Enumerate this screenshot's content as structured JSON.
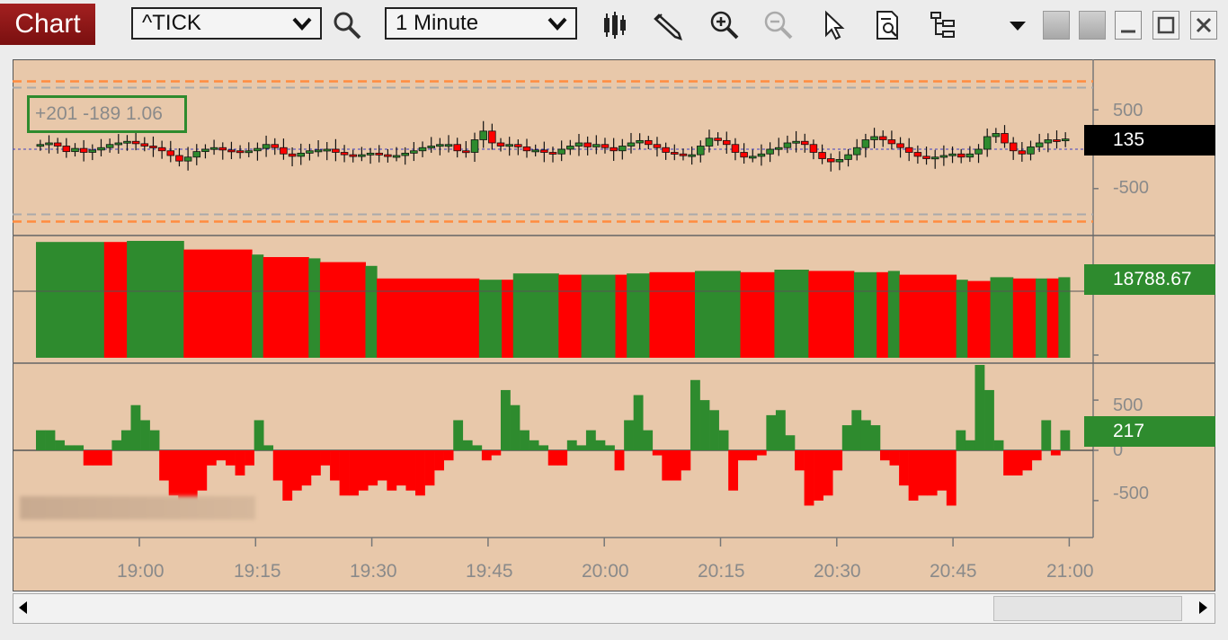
{
  "toolbar": {
    "tab_label": "Chart",
    "symbol_value": "^TICK",
    "interval_value": "1 Minute",
    "icons": [
      "search-icon",
      "bar-chart-icon",
      "pencil-icon",
      "zoom-in-icon",
      "zoom-out-icon",
      "pointer-icon",
      "page-search-icon",
      "layout-icon",
      "dropdown-arrow-icon",
      "minimize-icon",
      "restore-icon",
      "close-icon"
    ]
  },
  "legend": {
    "text": "+201 -189 1.06"
  },
  "panel1": {
    "y_ticks": [
      "500",
      "0",
      "-500"
    ],
    "price_tag": "135",
    "price_tag_color": "#000000"
  },
  "panel2": {
    "price_tag": "18788.67",
    "price_tag_color": "#2e8b2e"
  },
  "panel3": {
    "y_ticks": [
      "500",
      "0",
      "-500"
    ],
    "price_tag": "217",
    "price_tag_color": "#2e8b2e"
  },
  "x_axis": {
    "labels": [
      "19:00",
      "19:15",
      "19:30",
      "19:45",
      "20:00",
      "20:15",
      "20:30",
      "20:45",
      "21:00"
    ]
  },
  "colors": {
    "up": "#2e8b2e",
    "down": "#ff0000",
    "background": "#e8c8aa",
    "band_orange": "#ff8c40",
    "band_gray": "#aaaaaa"
  },
  "chart_data": [
    {
      "type": "line",
      "title": "",
      "xlabel": "",
      "ylabel": "",
      "ylim": [
        -1050,
        1050
      ],
      "x_labels": [
        "19:00",
        "19:15",
        "19:30",
        "19:45",
        "20:00",
        "20:15",
        "20:30",
        "20:45",
        "21:00"
      ],
      "last_value": 135,
      "series": [
        {
          "values": [
            60,
            80,
            40,
            -30,
            10,
            -40,
            -10,
            20,
            60,
            80,
            100,
            70,
            40,
            20,
            -20,
            -80,
            -150,
            -100,
            -30,
            0,
            20,
            -10,
            -20,
            -30,
            -20,
            10,
            60,
            20,
            -60,
            -90,
            -50,
            -20,
            -10,
            0,
            -40,
            -70,
            -90,
            -70,
            -50,
            -70,
            -90,
            -80,
            -50,
            -20,
            20,
            40,
            60,
            60,
            -20,
            -40,
            120,
            230,
            80,
            40,
            60,
            30,
            -20,
            -10,
            -40,
            -60,
            0,
            40,
            80,
            30,
            60,
            20,
            -20,
            40,
            80,
            110,
            60,
            20,
            -40,
            -60,
            -80,
            -70,
            40,
            140,
            110,
            60,
            -40,
            -100,
            -90,
            -60,
            0,
            20,
            80,
            100,
            60,
            -40,
            -120,
            -160,
            -130,
            -70,
            20,
            120,
            160,
            120,
            70,
            20,
            -40,
            -90,
            -120,
            -100,
            -80,
            -60,
            -100,
            -60,
            0,
            160,
            200,
            80,
            -20,
            -60,
            30,
            80,
            120,
            110,
            130
          ]
        }
      ]
    },
    {
      "type": "bar",
      "title": "",
      "last_value": 18788.67,
      "segments": [
        {
          "color": "up",
          "n": 6,
          "level": 0.92
        },
        {
          "color": "down",
          "n": 2,
          "level": 0.92
        },
        {
          "color": "up",
          "n": 5,
          "level": 0.94
        },
        {
          "color": "down",
          "n": 6,
          "level": 0.86
        },
        {
          "color": "up",
          "n": 1,
          "level": 0.82
        },
        {
          "color": "down",
          "n": 4,
          "level": 0.8
        },
        {
          "color": "up",
          "n": 1,
          "level": 0.79
        },
        {
          "color": "down",
          "n": 4,
          "level": 0.76
        },
        {
          "color": "up",
          "n": 1,
          "level": 0.73
        },
        {
          "color": "down",
          "n": 9,
          "level": 0.63
        },
        {
          "color": "up",
          "n": 2,
          "level": 0.62
        },
        {
          "color": "down",
          "n": 1,
          "level": 0.62
        },
        {
          "color": "up",
          "n": 4,
          "level": 0.67
        },
        {
          "color": "down",
          "n": 2,
          "level": 0.66
        },
        {
          "color": "up",
          "n": 3,
          "level": 0.66
        },
        {
          "color": "down",
          "n": 1,
          "level": 0.66
        },
        {
          "color": "up",
          "n": 2,
          "level": 0.67
        },
        {
          "color": "down",
          "n": 4,
          "level": 0.68
        },
        {
          "color": "up",
          "n": 4,
          "level": 0.69
        },
        {
          "color": "down",
          "n": 3,
          "level": 0.68
        },
        {
          "color": "up",
          "n": 3,
          "level": 0.7
        },
        {
          "color": "down",
          "n": 4,
          "level": 0.69
        },
        {
          "color": "up",
          "n": 2,
          "level": 0.68
        },
        {
          "color": "down",
          "n": 1,
          "level": 0.68
        },
        {
          "color": "up",
          "n": 1,
          "level": 0.69
        },
        {
          "color": "down",
          "n": 5,
          "level": 0.66
        },
        {
          "color": "up",
          "n": 1,
          "level": 0.62
        },
        {
          "color": "down",
          "n": 2,
          "level": 0.61
        },
        {
          "color": "up",
          "n": 2,
          "level": 0.64
        },
        {
          "color": "down",
          "n": 2,
          "level": 0.63
        },
        {
          "color": "up",
          "n": 1,
          "level": 0.63
        },
        {
          "color": "down",
          "n": 1,
          "level": 0.63
        },
        {
          "color": "up",
          "n": 1,
          "level": 0.64
        }
      ]
    },
    {
      "type": "bar",
      "title": "",
      "xlabel": "",
      "ylabel": "",
      "ylim": [
        -850,
        850
      ],
      "last_value": 217,
      "values": [
        200,
        200,
        100,
        50,
        50,
        -150,
        -150,
        -150,
        100,
        200,
        450,
        300,
        200,
        -300,
        -450,
        -500,
        -500,
        -400,
        -150,
        -100,
        -150,
        -250,
        -150,
        300,
        50,
        -300,
        -500,
        -400,
        -350,
        -250,
        -150,
        -300,
        -450,
        -450,
        -400,
        -350,
        -300,
        -400,
        -350,
        -400,
        -450,
        -350,
        -200,
        -100,
        300,
        100,
        50,
        -100,
        -50,
        600,
        450,
        200,
        100,
        50,
        -150,
        -150,
        100,
        50,
        200,
        100,
        50,
        -200,
        300,
        550,
        200,
        -50,
        -300,
        -300,
        -200,
        700,
        500,
        400,
        200,
        -400,
        -100,
        -100,
        -50,
        350,
        400,
        150,
        -200,
        -550,
        -500,
        -450,
        -200,
        250,
        400,
        300,
        250,
        -100,
        -150,
        -350,
        -500,
        -450,
        -450,
        -400,
        -550,
        200,
        100,
        850,
        600,
        100,
        -250,
        -250,
        -200,
        -100,
        300,
        -50,
        200
      ]
    }
  ]
}
